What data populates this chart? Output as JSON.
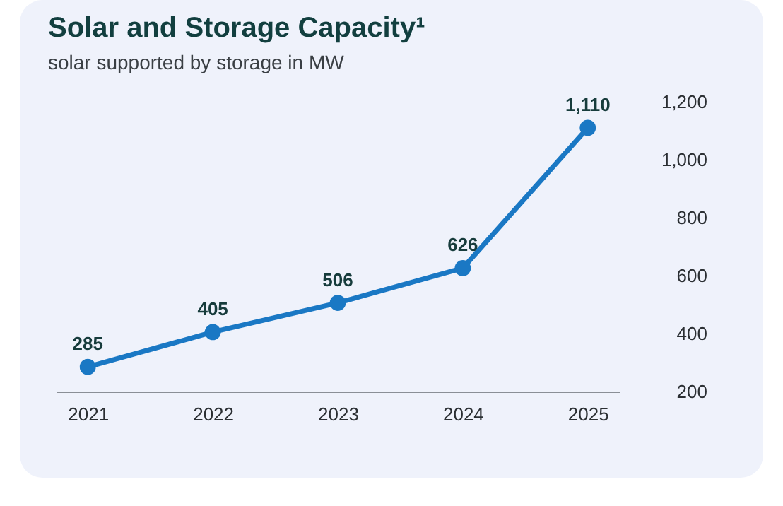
{
  "chart_data": {
    "type": "line",
    "title": "Solar and Storage Capacity¹",
    "subtitle": "solar supported by storage in MW",
    "categories": [
      "2021",
      "2022",
      "2023",
      "2024",
      "2025"
    ],
    "series": [
      {
        "color": "#1a78c4",
        "values": [
          285,
          405,
          506,
          626,
          1110
        ],
        "value_labels": [
          "285",
          "405",
          "506",
          "626",
          "1,110"
        ]
      }
    ],
    "ylim": [
      200,
      1200
    ],
    "yticks": [
      200,
      400,
      600,
      800,
      {
        "value": 1000,
        "label": "1,000"
      },
      {
        "value": 1200,
        "label": "1,200"
      }
    ],
    "grid": false,
    "legend": false,
    "marker": "circle",
    "line_style": "solid"
  }
}
